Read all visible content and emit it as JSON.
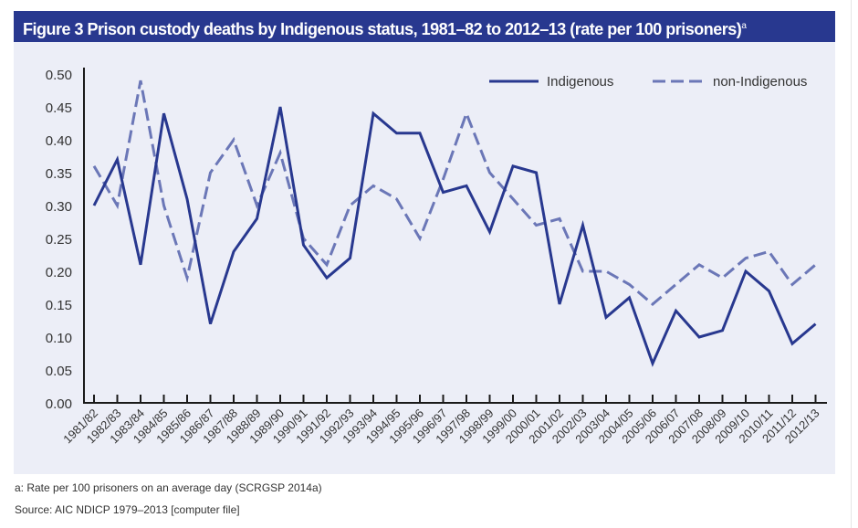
{
  "title": "Figure 3 Prison custody deaths by Indigenous status, 1981–82 to 2012–13 (rate per 100 prisoners)",
  "title_superscript": "a",
  "footnote": "a: Rate per 100 prisoners on an average day (SCRGSP 2014a)",
  "source": "Source: AIC NDICP 1979–2013 [computer file]",
  "colors": {
    "title_bg": "#28388f",
    "panel_bg": "#eceef7",
    "indigenous": "#28388f",
    "non_indigenous": "#6b77b7",
    "axis": "#1a1a1a",
    "tick_text": "#333333"
  },
  "chart_data": {
    "type": "line",
    "title": "Figure 3 Prison custody deaths by Indigenous status, 1981–82 to 2012–13 (rate per 100 prisoners)",
    "xlabel": "",
    "ylabel": "",
    "ylim": [
      0,
      0.5
    ],
    "yticks": [
      "0.00",
      "0.05",
      "0.10",
      "0.15",
      "0.20",
      "0.25",
      "0.30",
      "0.35",
      "0.40",
      "0.45",
      "0.50"
    ],
    "grid": false,
    "legend_position": "top-right",
    "categories": [
      "1981/82",
      "1982/83",
      "1983/84",
      "1984/85",
      "1985/86",
      "1986/87",
      "1987/88",
      "1988/89",
      "1989/90",
      "1990/91",
      "1991/92",
      "1992/93",
      "1993/94",
      "1994/95",
      "1995/96",
      "1996/97",
      "1997/98",
      "1998/99",
      "1999/00",
      "2000/01",
      "2001/02",
      "2002/03",
      "2003/04",
      "2004/05",
      "2005/06",
      "2006/07",
      "2007/08",
      "2008/09",
      "2009/10",
      "2010/11",
      "2011/12",
      "2012/13"
    ],
    "series": [
      {
        "name": "Indigenous",
        "style": "solid",
        "values": [
          0.3,
          0.37,
          0.21,
          0.44,
          0.31,
          0.12,
          0.23,
          0.28,
          0.45,
          0.24,
          0.19,
          0.22,
          0.44,
          0.41,
          0.41,
          0.32,
          0.33,
          0.26,
          0.36,
          0.35,
          0.15,
          0.27,
          0.13,
          0.16,
          0.06,
          0.14,
          0.1,
          0.11,
          0.2,
          0.17,
          0.09,
          0.12
        ]
      },
      {
        "name": "non-Indigenous",
        "style": "dashed",
        "values": [
          0.36,
          0.3,
          0.49,
          0.3,
          0.19,
          0.35,
          0.4,
          0.3,
          0.38,
          0.25,
          0.21,
          0.3,
          0.33,
          0.31,
          0.25,
          0.34,
          0.44,
          0.35,
          0.31,
          0.27,
          0.28,
          0.2,
          0.2,
          0.18,
          0.15,
          0.18,
          0.21,
          0.19,
          0.22,
          0.23,
          0.18,
          0.21
        ]
      }
    ]
  }
}
